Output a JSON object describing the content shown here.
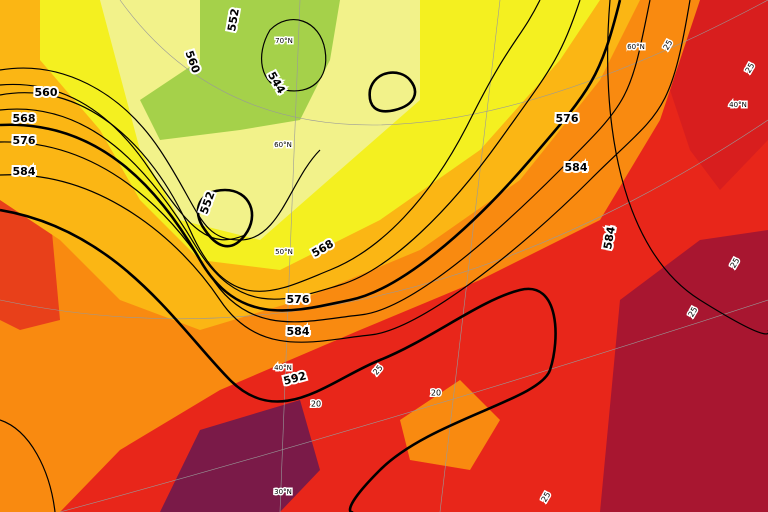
{
  "contour_labels": [
    "560",
    "568",
    "576",
    "584",
    "552",
    "560",
    "544",
    "552",
    "568",
    "576",
    "584",
    "592",
    "576",
    "584",
    "584"
  ],
  "latitude_labels": [
    "70°N",
    "60°N",
    "50°N",
    "40°N",
    "30°N",
    "60°N",
    "40°N"
  ],
  "temperature_labels": [
    "25",
    "20",
    "20",
    "25",
    "25",
    "25",
    "25",
    "25"
  ]
}
